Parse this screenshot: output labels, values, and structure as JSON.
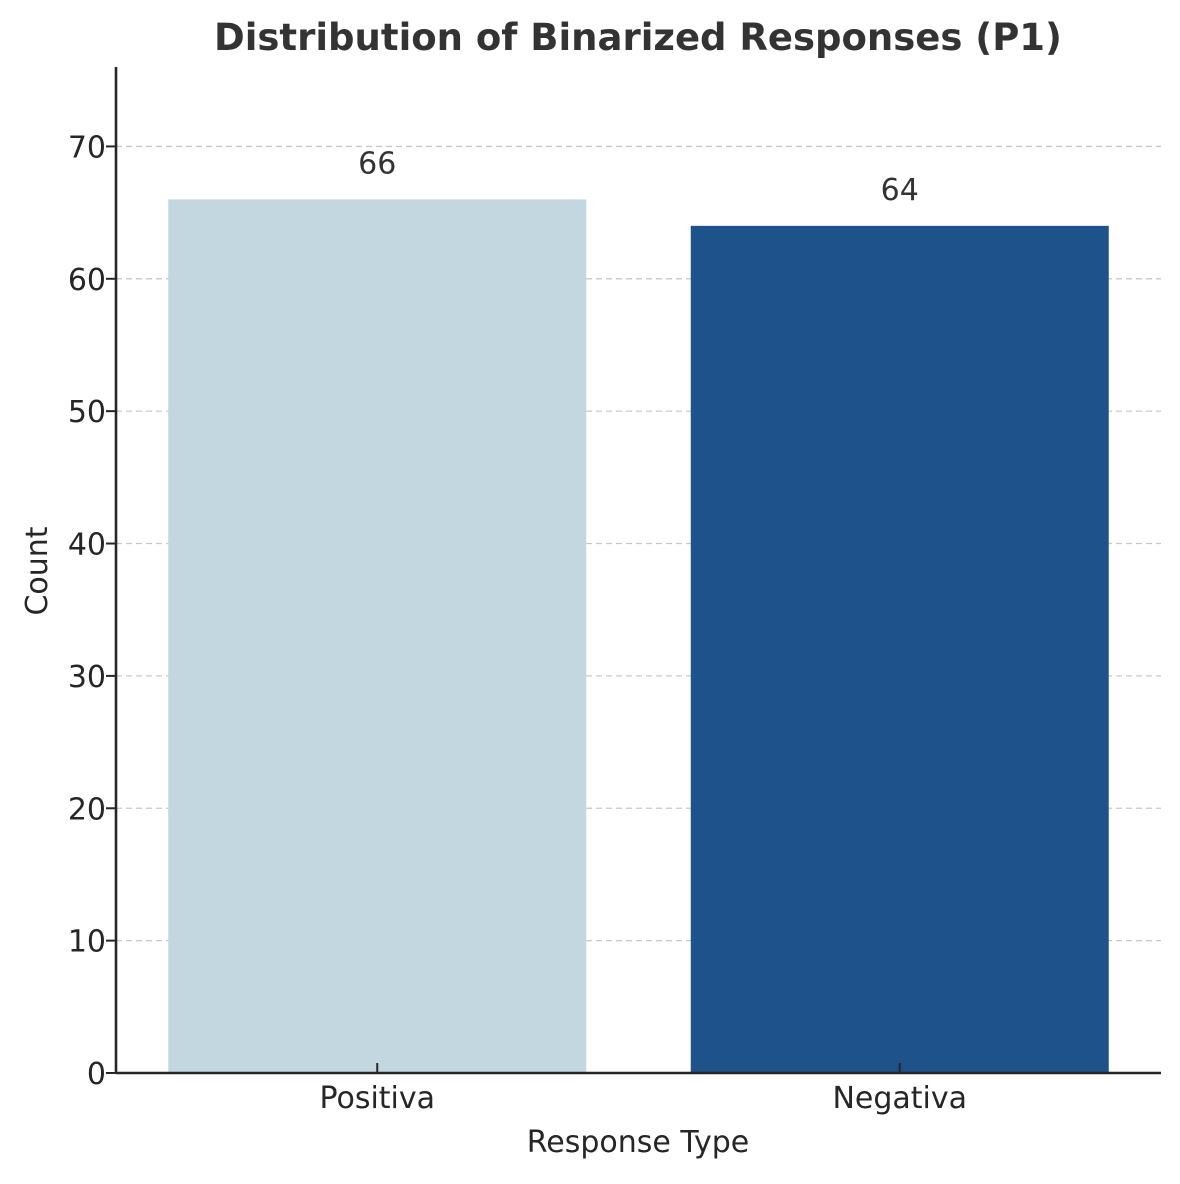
{
  "chart_data": {
    "type": "bar",
    "title": "Distribution of Binarized Responses (P1)",
    "xlabel": "Response Type",
    "ylabel": "Count",
    "categories": [
      "Positiva",
      "Negativa"
    ],
    "values": [
      66,
      64
    ],
    "data_labels": [
      "66",
      "64"
    ],
    "bar_colors": [
      "#c3d7e1",
      "#1d528a"
    ],
    "ylim": [
      0,
      76
    ],
    "yticks": [
      0,
      10,
      20,
      30,
      40,
      50,
      60,
      70
    ],
    "grid": "y-dashed",
    "legend": "none"
  }
}
